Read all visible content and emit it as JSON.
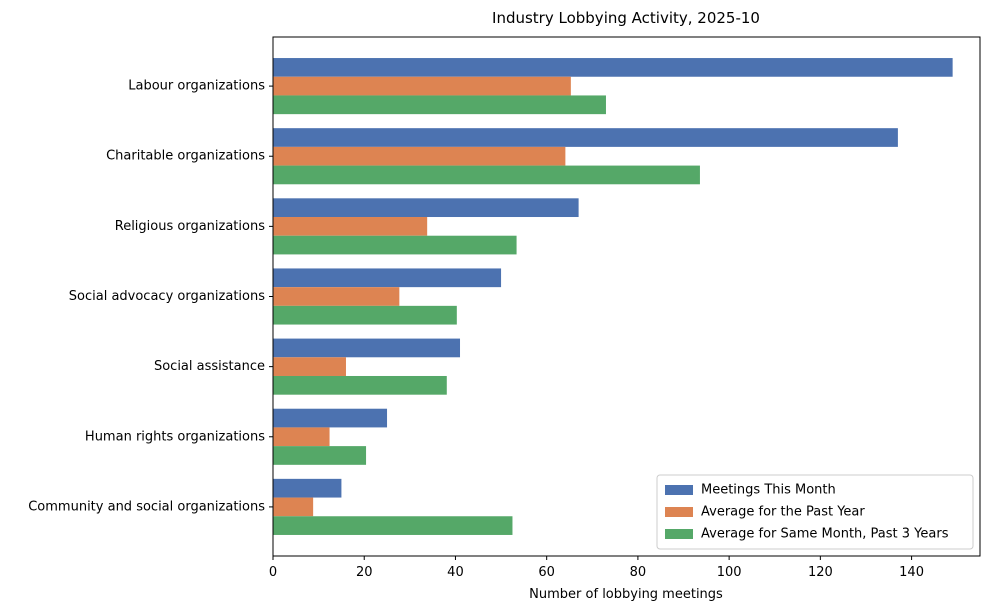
{
  "chart_data": {
    "type": "bar",
    "orientation": "horizontal",
    "title": "Industry Lobbying Activity, 2025-10",
    "xlabel": "Number of lobbying meetings",
    "ylabel": "",
    "xlim": [
      0,
      155
    ],
    "xticks": [
      0,
      20,
      40,
      60,
      80,
      100,
      120,
      140
    ],
    "categories": [
      "Labour organizations",
      "Charitable organizations",
      "Religious organizations",
      "Social advocacy organizations",
      "Social assistance",
      "Human rights organizations",
      "Community and social organizations"
    ],
    "series": [
      {
        "name": "Meetings This Month",
        "color": "#4c72b0",
        "values": [
          149,
          137,
          67,
          50,
          41,
          25,
          15
        ]
      },
      {
        "name": "Average for the Past Year",
        "color": "#dd8452",
        "values": [
          65.3,
          64.1,
          33.8,
          27.7,
          16,
          12.4,
          8.8
        ]
      },
      {
        "name": "Average for Same Month, Past 3 Years",
        "color": "#55a868",
        "values": [
          73,
          93.6,
          53.4,
          40.3,
          38.1,
          20.4,
          52.5
        ]
      }
    ],
    "legend_position": "lower-right",
    "grid": false
  }
}
